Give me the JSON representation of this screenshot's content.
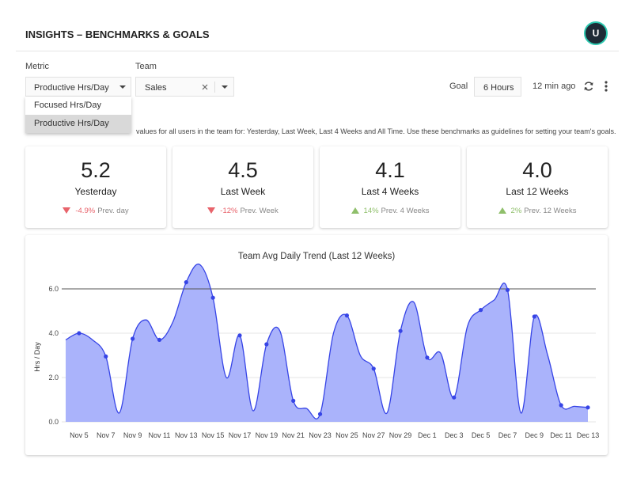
{
  "header": {
    "title": "INSIGHTS – BENCHMARKS & GOALS",
    "avatar": "U"
  },
  "filters": {
    "metric_label": "Metric",
    "metric_value": "Productive Hrs/Day",
    "metric_options": [
      "Focused Hrs/Day",
      "Productive Hrs/Day"
    ],
    "team_label": "Team",
    "team_value": "Sales",
    "goal_label": "Goal",
    "goal_value": "6 Hours",
    "updated": "12 min ago"
  },
  "description": "values for all users in the team for: Yesterday, Last Week, Last 4 Weeks and All Time. Use these benchmarks as guidelines for setting your team's goals.",
  "cards": [
    {
      "value": "5.2",
      "label": "Yesterday",
      "change": "-4.9%",
      "comparison": "Prev. day",
      "direction": "down"
    },
    {
      "value": "4.5",
      "label": "Last Week",
      "change": "-12%",
      "comparison": "Prev. Week",
      "direction": "down"
    },
    {
      "value": "4.1",
      "label": "Last 4 Weeks",
      "change": "14%",
      "comparison": "Prev. 4 Weeks",
      "direction": "up"
    },
    {
      "value": "4.0",
      "label": "Last 12 Weeks",
      "change": "2%",
      "comparison": "Prev. 12 Weeks",
      "direction": "up"
    }
  ],
  "chart_data": {
    "type": "area",
    "title": "Team Avg Daily Trend (Last 12 Weeks)",
    "y_label": "Hrs / Day",
    "categories": [
      null,
      "Nov 5",
      null,
      "Nov 7",
      null,
      "Nov 9",
      null,
      "Nov 11",
      null,
      "Nov 13",
      null,
      "Nov 15",
      null,
      "Nov 17",
      null,
      "Nov 19",
      null,
      "Nov 21",
      null,
      "Nov 23",
      null,
      "Nov 25",
      null,
      "Nov 27",
      null,
      "Nov 29",
      null,
      "Dec 1",
      null,
      "Dec 3",
      null,
      "Dec 5",
      null,
      "Dec 7",
      null,
      "Dec 9",
      null,
      "Dec 11",
      null,
      "Dec 13"
    ],
    "values": [
      3.7,
      4.0,
      3.7,
      2.95,
      0.4,
      3.75,
      4.6,
      3.7,
      4.5,
      6.3,
      7.1,
      5.6,
      2.0,
      3.9,
      0.5,
      3.5,
      4.1,
      0.95,
      0.6,
      0.35,
      4.0,
      4.8,
      3.0,
      2.4,
      0.4,
      4.1,
      5.4,
      2.9,
      3.1,
      1.1,
      4.3,
      5.05,
      5.5,
      5.95,
      0.4,
      4.75,
      3.0,
      0.75,
      0.7,
      0.65
    ],
    "color": "#3644e6",
    "fill_color": "#aab3fb",
    "ylim": [
      0,
      7.2
    ],
    "yticks": [
      {
        "value": 0,
        "label": "0.0"
      },
      {
        "value": 2,
        "label": "2.0"
      },
      {
        "value": 4,
        "label": "4.0"
      },
      {
        "value": 6,
        "label": "6.0"
      }
    ],
    "reference_line": 6,
    "grid": true
  }
}
